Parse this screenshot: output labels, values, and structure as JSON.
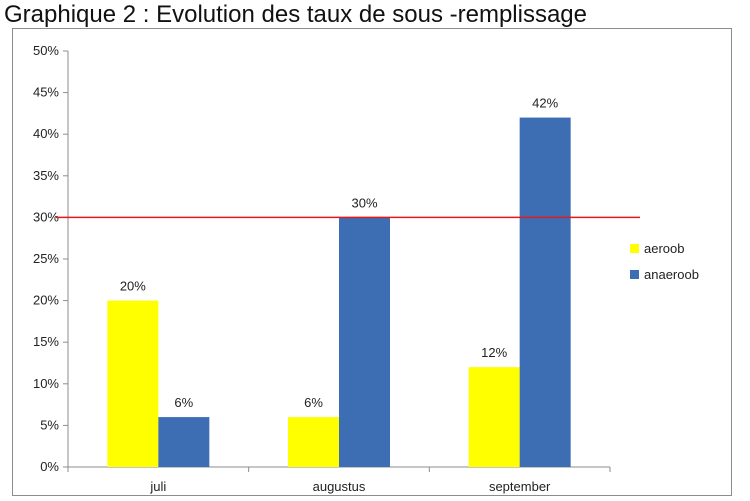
{
  "chart_data": {
    "type": "bar",
    "title": "Graphique 2 : Evolution des taux de sous -remplissage",
    "categories": [
      "juli",
      "augustus",
      "september"
    ],
    "series": [
      {
        "name": "aeroob",
        "values": [
          20,
          6,
          12
        ],
        "color": "#ffff00",
        "labels": [
          "20%",
          "6%",
          "12%"
        ]
      },
      {
        "name": "anaeroob",
        "values": [
          6,
          30,
          42
        ],
        "color": "#3d6eb4",
        "labels": [
          "6%",
          "30%",
          "42%"
        ]
      }
    ],
    "yticks": [
      "0%",
      "5%",
      "10%",
      "15%",
      "20%",
      "25%",
      "30%",
      "35%",
      "40%",
      "45%",
      "50%"
    ],
    "ylim": [
      0,
      50
    ],
    "reference_line": {
      "value": 30,
      "color": "#e31a1c"
    },
    "legend_position": "right",
    "grid": false
  }
}
